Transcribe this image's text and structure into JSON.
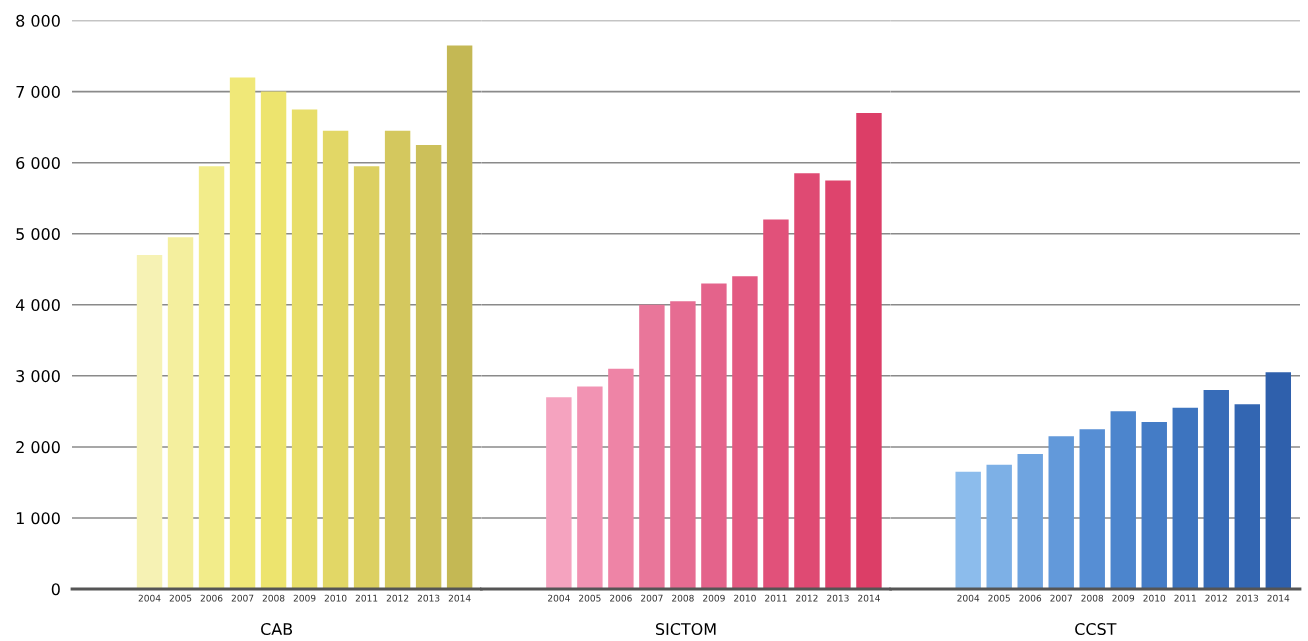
{
  "chart_data": [
    {
      "type": "bar",
      "xlabel": "CAB",
      "categories": [
        "2004",
        "2005",
        "2006",
        "2007",
        "2008",
        "2009",
        "2010",
        "2011",
        "2012",
        "2013",
        "2014"
      ],
      "values": [
        4700,
        4950,
        5950,
        7200,
        7000,
        6750,
        6450,
        5950,
        6450,
        6250,
        7650
      ],
      "colors": [
        "#f6f2b4",
        "#f4ef9e",
        "#f2ec8a",
        "#f0e878",
        "#ede46e",
        "#e8de6a",
        "#e2d766",
        "#dcd062",
        "#d4c85e",
        "#ccc05a",
        "#c4b854"
      ],
      "ylim": [
        0,
        8000
      ],
      "yticks": [
        {
          "value": 0,
          "label": "0"
        },
        {
          "value": 1000,
          "label": "1 000"
        },
        {
          "value": 2000,
          "label": "2 000"
        },
        {
          "value": 3000,
          "label": "3 000"
        },
        {
          "value": 4000,
          "label": "4 000"
        },
        {
          "value": 5000,
          "label": "5 000"
        },
        {
          "value": 6000,
          "label": "6 000"
        },
        {
          "value": 7000,
          "label": "7 000"
        },
        {
          "value": 8000,
          "label": "8 000"
        }
      ],
      "grid": "y"
    },
    {
      "type": "bar",
      "xlabel": "SICTOM",
      "categories": [
        "2004",
        "2005",
        "2006",
        "2007",
        "2008",
        "2009",
        "2010",
        "2011",
        "2012",
        "2013",
        "2014"
      ],
      "values": [
        2700,
        2850,
        3100,
        4000,
        4050,
        4300,
        4400,
        5200,
        5850,
        5750,
        6700
      ],
      "colors": [
        "#f5a3bf",
        "#f293b3",
        "#ee84a6",
        "#e9769a",
        "#e66c92",
        "#e4638b",
        "#e35a82",
        "#e1517a",
        "#df4a73",
        "#de446d",
        "#dc3e67"
      ],
      "ylim": [
        0,
        8000
      ],
      "yticks": [
        0,
        1000,
        2000,
        3000,
        4000,
        5000,
        6000,
        7000,
        8000
      ],
      "grid": "y",
      "tick_labels": "x"
    },
    {
      "type": "bar",
      "xlabel": "CCST",
      "categories": [
        "2004",
        "2005",
        "2006",
        "2007",
        "2008",
        "2009",
        "2010",
        "2011",
        "2012",
        "2013",
        "2014"
      ],
      "values": [
        1650,
        1750,
        1900,
        2150,
        2250,
        2500,
        2350,
        2550,
        2800,
        2600,
        3050
      ],
      "colors": [
        "#8cbcec",
        "#7db0e6",
        "#6fa4e0",
        "#6299da",
        "#568ed4",
        "#4c85cd",
        "#447cc6",
        "#3d74bf",
        "#376cb8",
        "#3366b2",
        "#2f60ac"
      ],
      "ylim": [
        0,
        8000
      ],
      "yticks": [
        0,
        1000,
        2000,
        3000,
        4000,
        5000,
        6000,
        7000,
        8000
      ],
      "grid": "y",
      "tick_labels": "x"
    }
  ]
}
